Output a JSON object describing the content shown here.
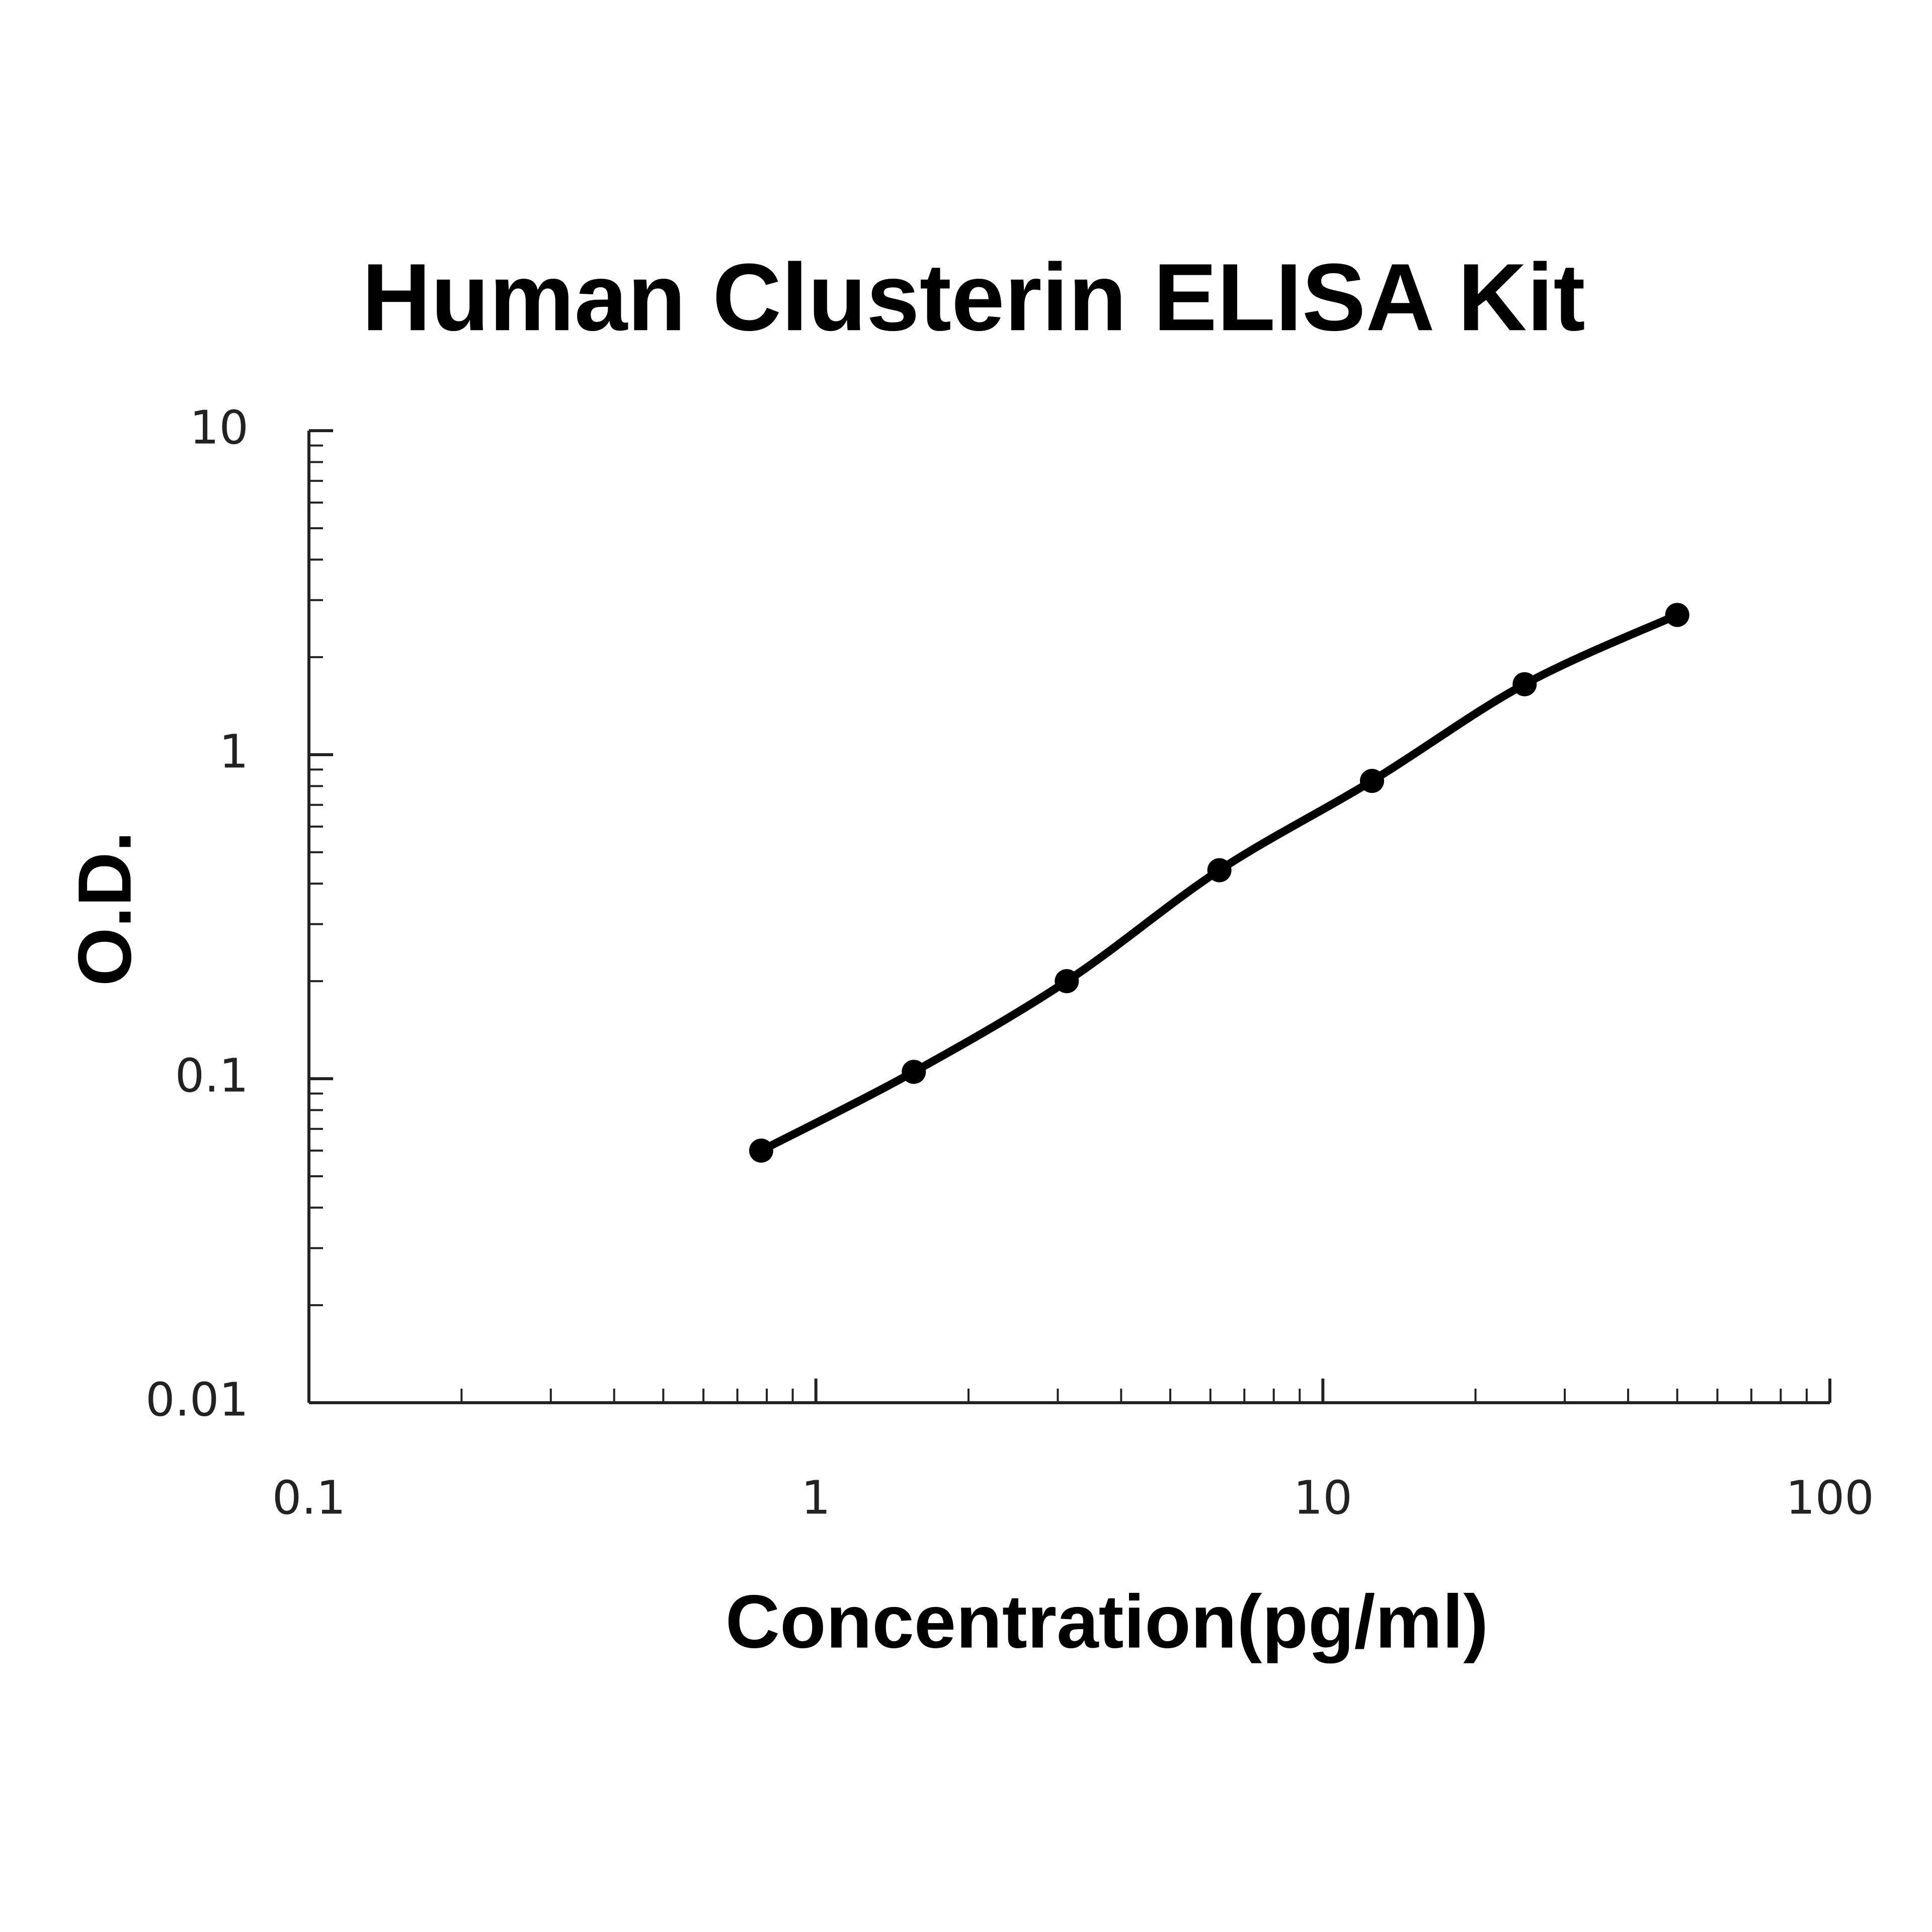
{
  "chart_data": {
    "type": "line",
    "title": "Human Clusterin ELISA Kit",
    "x_label": "Concentration(pg/ml)",
    "y_label": "O.D.",
    "x": [
      0.78,
      1.56,
      3.125,
      6.25,
      12.5,
      25,
      50
    ],
    "values": [
      0.06,
      0.105,
      0.2,
      0.44,
      0.83,
      1.65,
      2.7
    ],
    "color": "#000000",
    "log_x": true,
    "log_y": true,
    "xlim": [
      0.1,
      100
    ],
    "xticks": [
      0.1,
      1,
      10,
      100
    ],
    "ylim": [
      0.01,
      10
    ],
    "yticks": [
      0.01,
      0.1,
      1,
      10
    ]
  }
}
